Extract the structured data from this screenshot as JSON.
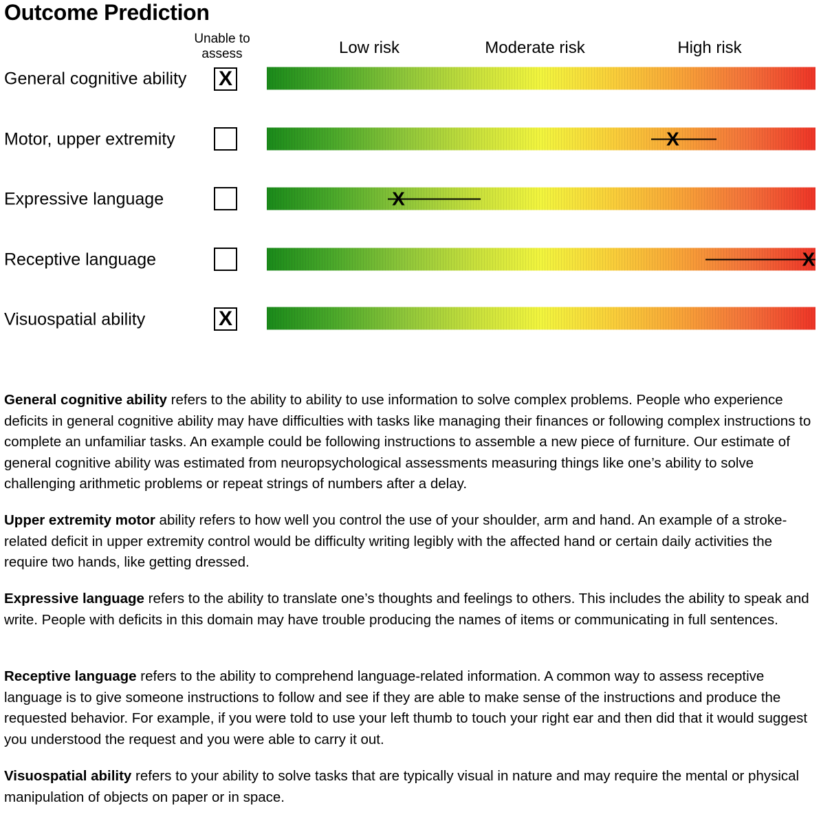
{
  "title": "Outcome Prediction",
  "unable_header": "Unable to assess",
  "risk_labels": {
    "low": "Low risk",
    "moderate": "Moderate risk",
    "high": "High risk"
  },
  "rows": [
    {
      "label": "General cognitive ability",
      "unable": true,
      "checkbox_mark": "X",
      "marker": null
    },
    {
      "label": "Motor, upper extremity",
      "unable": false,
      "checkbox_mark": "",
      "marker": {
        "point": 0.74,
        "low": 0.7,
        "high": 0.82,
        "glyph": "X"
      }
    },
    {
      "label": "Expressive language",
      "unable": false,
      "checkbox_mark": "",
      "marker": {
        "point": 0.24,
        "low": 0.22,
        "high": 0.39,
        "glyph": "X"
      }
    },
    {
      "label": "Receptive language",
      "unable": false,
      "checkbox_mark": "",
      "marker": {
        "point": 0.995,
        "low": 0.8,
        "high": 1.0,
        "glyph": "X"
      }
    },
    {
      "label": "Visuospatial ability",
      "unable": true,
      "checkbox_mark": "X",
      "marker": null
    }
  ],
  "descriptions": [
    {
      "term": "General cognitive ability",
      "text": " refers to the ability to ability to use information to solve complex problems. People who experience deficits in general cognitive ability may have difficulties with tasks like managing their finances or following complex instructions to complete an unfamiliar tasks. An example could be following instructions to assemble a new piece of furniture. Our estimate of general cognitive ability was estimated from neuropsychological assessments measuring things like one’s ability to solve challenging arithmetic problems or repeat strings of numbers after a delay."
    },
    {
      "term": "Upper extremity motor",
      "text": " ability refers to how well you control the use of your shoulder, arm and hand. An example of a stroke-related deficit in upper extremity control would be difficulty writing legibly with the affected hand or certain daily activities the require two hands, like getting dressed."
    },
    {
      "term": "Expressive language",
      "text": " refers to the ability to translate one’s thoughts and feelings to others. This includes the ability to speak and write. People with deficits in this domain may have trouble producing the names of items or communicating in full sentences."
    },
    {
      "term": "Receptive language",
      "text": " refers to the ability to comprehend language-related information. A common way to assess receptive language is to give someone instructions to follow and see if they are able to make sense of the instructions and produce the requested behavior. For example, if you were told to use your left thumb to touch your right ear and then did that it would suggest you understood the request and you were able to carry it out."
    },
    {
      "term": "Visuospatial ability",
      "text": " refers to your ability to solve tasks that are typically visual in nature and may require the mental or physical manipulation of objects on paper or in space."
    }
  ]
}
